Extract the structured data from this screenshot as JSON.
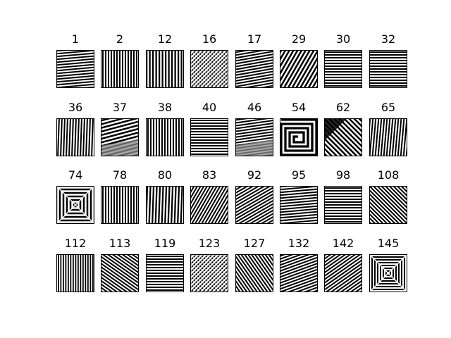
{
  "chart_data": {
    "type": "image-grid",
    "grid": {
      "rows": 4,
      "columns": 8
    },
    "tiles": [
      {
        "label": "1",
        "pattern": "stripes",
        "angle": 5,
        "period": 4
      },
      {
        "label": "2",
        "pattern": "stripes",
        "angle": 90,
        "period": 4
      },
      {
        "label": "12",
        "pattern": "stripes",
        "angle": 90,
        "period": 4.5
      },
      {
        "label": "16",
        "pattern": "checker",
        "angle": 45,
        "period": 4
      },
      {
        "label": "17",
        "pattern": "stripes",
        "angle": 10,
        "period": 4
      },
      {
        "label": "29",
        "pattern": "stripes",
        "angle": 60,
        "period": 5
      },
      {
        "label": "30",
        "pattern": "stripes",
        "angle": 0,
        "period": 4
      },
      {
        "label": "32",
        "pattern": "stripes",
        "angle": 0,
        "period": 4
      },
      {
        "label": "36",
        "pattern": "stripes",
        "angle": 88,
        "period": 4
      },
      {
        "label": "37",
        "pattern": "stripes",
        "angle": 15,
        "period": 5,
        "shade": "lower"
      },
      {
        "label": "38",
        "pattern": "stripes",
        "angle": 90,
        "period": 4
      },
      {
        "label": "40",
        "pattern": "stripes",
        "angle": 0,
        "period": 4
      },
      {
        "label": "46",
        "pattern": "stripes",
        "angle": 8,
        "period": 4,
        "shade": "lower"
      },
      {
        "label": "54",
        "pattern": "spiral",
        "angle": 0,
        "period": 6
      },
      {
        "label": "62",
        "pattern": "stripes",
        "angle": -45,
        "period": 5,
        "shade": "upper"
      },
      {
        "label": "65",
        "pattern": "stripes",
        "angle": 85,
        "period": 4
      },
      {
        "label": "74",
        "pattern": "frames",
        "angle": 0,
        "period": 5
      },
      {
        "label": "78",
        "pattern": "stripes",
        "angle": 90,
        "period": 4
      },
      {
        "label": "80",
        "pattern": "stripes",
        "angle": 88,
        "period": 4.5
      },
      {
        "label": "83",
        "pattern": "stripes",
        "angle": 60,
        "period": 4
      },
      {
        "label": "92",
        "pattern": "stripes",
        "angle": 30,
        "period": 4
      },
      {
        "label": "95",
        "pattern": "stripes",
        "angle": 5,
        "period": 4
      },
      {
        "label": "98",
        "pattern": "stripes",
        "angle": 0,
        "period": 4
      },
      {
        "label": "108",
        "pattern": "stripes",
        "angle": -45,
        "period": 4
      },
      {
        "label": "112",
        "pattern": "stripes",
        "angle": 90,
        "period": 3.5
      },
      {
        "label": "113",
        "pattern": "stripes",
        "angle": -35,
        "period": 4
      },
      {
        "label": "119",
        "pattern": "stripes",
        "angle": 0,
        "period": 4
      },
      {
        "label": "123",
        "pattern": "checker",
        "angle": 45,
        "period": 4
      },
      {
        "label": "127",
        "pattern": "stripes",
        "angle": -55,
        "period": 4
      },
      {
        "label": "132",
        "pattern": "stripes",
        "angle": 20,
        "period": 4
      },
      {
        "label": "142",
        "pattern": "stripes",
        "angle": 35,
        "period": 4
      },
      {
        "label": "145",
        "pattern": "frames",
        "angle": 0,
        "period": 4
      }
    ],
    "colors": {
      "ink": "#000000",
      "paper": "#ffffff",
      "shade": "#8c8c8c"
    }
  }
}
